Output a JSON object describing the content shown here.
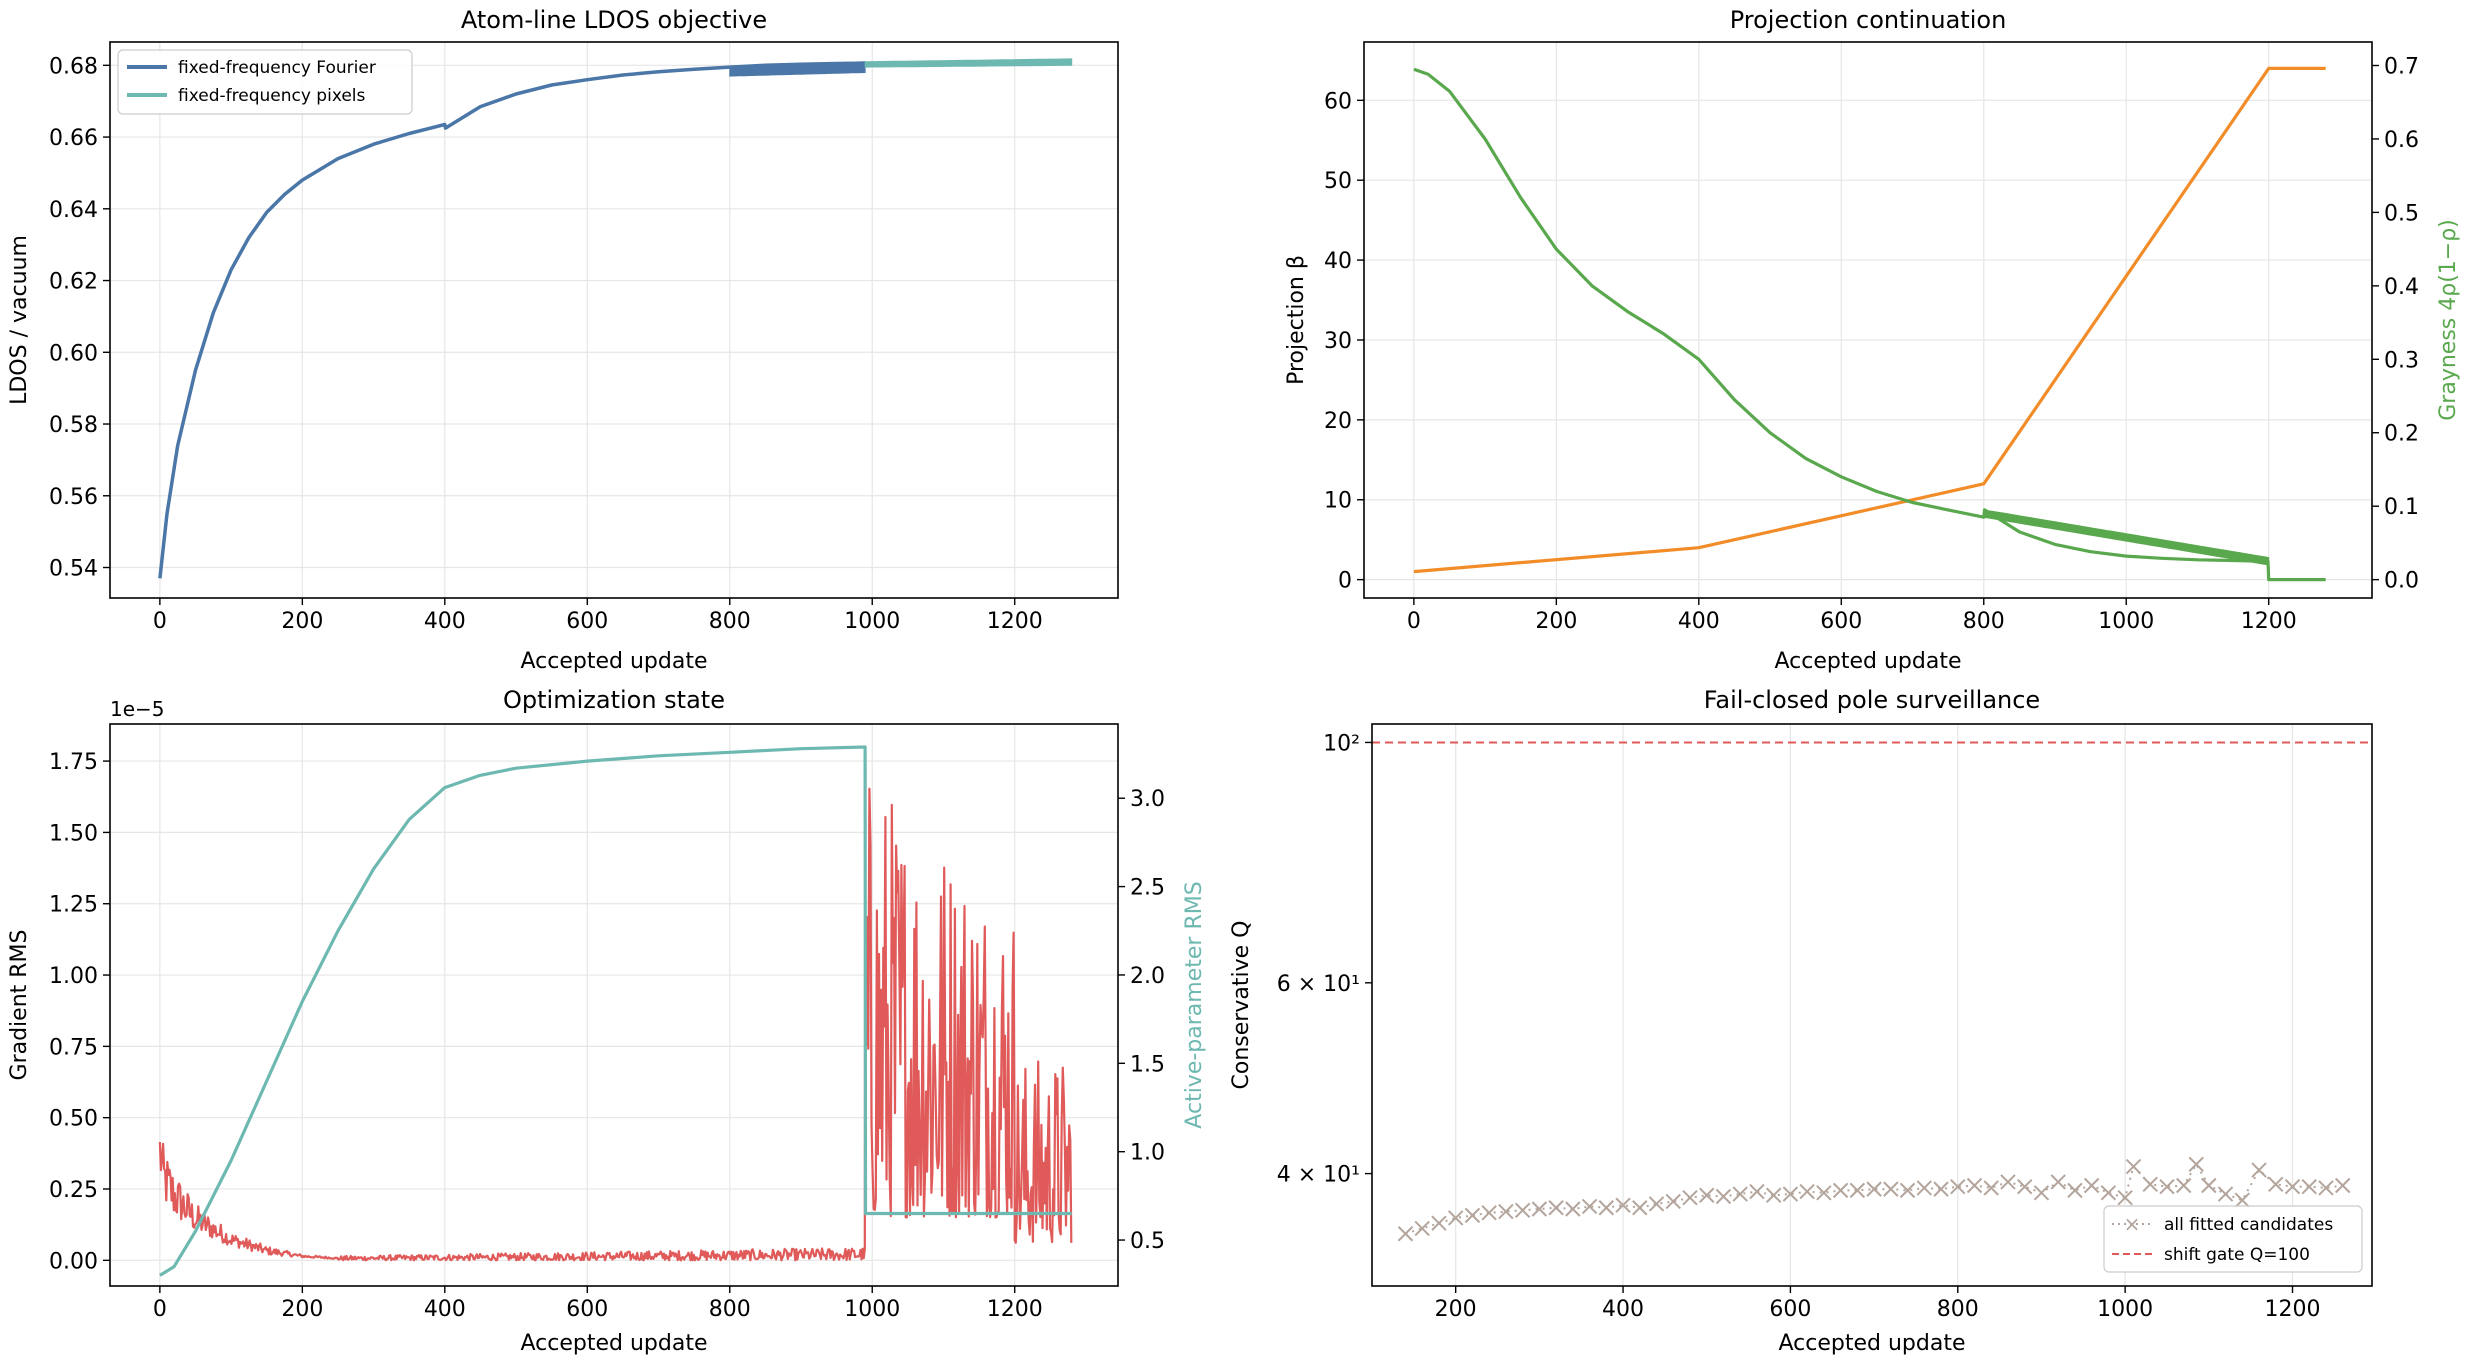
{
  "figure": {
    "colors": {
      "fourier": "#4a76a8",
      "pixels": "#6db8b1",
      "beta": "#f28c28",
      "grayness": "#5aa84e",
      "gradient": "#e05a5a",
      "active_rms": "#6db8b1",
      "candidates": "#b3a59c",
      "gate": "#e05a5a",
      "grid": "#e6e6e6"
    }
  },
  "chart_data": [
    {
      "id": "ldos",
      "type": "line",
      "title": "Atom-line LDOS objective",
      "xlabel": "Accepted update",
      "ylabel": "LDOS / vacuum",
      "xlim": [
        -70,
        1345
      ],
      "ylim": [
        0.5315,
        0.6865
      ],
      "xticks": [
        0,
        200,
        400,
        600,
        800,
        1000,
        1200
      ],
      "yticks": [
        0.54,
        0.56,
        0.58,
        0.6,
        0.62,
        0.64,
        0.66,
        0.68
      ],
      "ytick_labels": [
        "0.54",
        "0.56",
        "0.58",
        "0.60",
        "0.62",
        "0.64",
        "0.66",
        "0.68"
      ],
      "grid": true,
      "legend": "top-left",
      "series": [
        {
          "name": "fixed-frequency Fourier",
          "color_key": "fourier",
          "x": [
            0,
            10,
            25,
            50,
            75,
            100,
            125,
            150,
            175,
            200,
            250,
            300,
            350,
            400,
            401,
            450,
            500,
            550,
            600,
            650,
            700,
            750,
            800,
            850,
            900,
            950,
            990
          ],
          "y": [
            0.537,
            0.555,
            0.574,
            0.595,
            0.611,
            0.623,
            0.632,
            0.639,
            0.644,
            0.648,
            0.654,
            0.658,
            0.661,
            0.6635,
            0.6625,
            0.6685,
            0.672,
            0.6745,
            0.676,
            0.6773,
            0.6782,
            0.6789,
            0.6795,
            0.68,
            0.6803,
            0.6805,
            0.6806
          ],
          "band": {
            "x_start": 800,
            "x_end": 990,
            "lower_start": 0.677,
            "lower_end": 0.678,
            "upper_start": 0.6798,
            "upper_end": 0.681
          }
        },
        {
          "name": "fixed-frequency pixels",
          "color_key": "pixels",
          "x": [
            990,
            1280
          ],
          "y": [
            0.6806,
            0.6812
          ],
          "band": {
            "x_start": 990,
            "x_end": 1280,
            "lower_start": 0.6795,
            "lower_end": 0.68,
            "upper_start": 0.681,
            "upper_end": 0.6818
          }
        }
      ]
    },
    {
      "id": "projection",
      "type": "line",
      "title": "Projection continuation",
      "xlabel": "Accepted update",
      "ylabel": "Projection β",
      "ylabel_right": "Grayness 4ρ(1−ρ)",
      "xlim": [
        -70,
        1345
      ],
      "ylim": [
        -2.3,
        67.3
      ],
      "ylim_right": [
        -0.025,
        0.732
      ],
      "xticks": [
        0,
        200,
        400,
        600,
        800,
        1000,
        1200
      ],
      "yticks": [
        0,
        10,
        20,
        30,
        40,
        50,
        60
      ],
      "ytick_labels": [
        "0",
        "10",
        "20",
        "30",
        "40",
        "50",
        "60"
      ],
      "yticks_right": [
        0.0,
        0.1,
        0.2,
        0.3,
        0.4,
        0.5,
        0.6,
        0.7
      ],
      "ytick_labels_right": [
        "0.0",
        "0.1",
        "0.2",
        "0.3",
        "0.4",
        "0.5",
        "0.6",
        "0.7"
      ],
      "grid": true,
      "series": [
        {
          "axis": "left",
          "color_key": "beta",
          "x": [
            0,
            400,
            800,
            1200,
            1280
          ],
          "y": [
            1,
            4,
            12,
            64,
            64
          ]
        },
        {
          "axis": "right",
          "color_key": "grayness",
          "x": [
            0,
            20,
            50,
            100,
            150,
            200,
            250,
            300,
            350,
            400,
            450,
            500,
            550,
            600,
            650,
            700,
            750,
            800,
            801,
            850,
            900,
            950,
            1000,
            1050,
            1100,
            1150,
            1199,
            1200,
            1280
          ],
          "y": [
            0.695,
            0.688,
            0.665,
            0.6,
            0.52,
            0.45,
            0.4,
            0.365,
            0.335,
            0.3,
            0.245,
            0.2,
            0.165,
            0.14,
            0.12,
            0.105,
            0.095,
            0.085,
            0.095,
            0.065,
            0.048,
            0.038,
            0.032,
            0.029,
            0.027,
            0.026,
            0.025,
            0.0,
            0.0
          ],
          "band": {
            "x_start": 800,
            "x_end": 1200,
            "lower_start": 0.085,
            "lower_end": 0.02,
            "upper_start": 0.095,
            "upper_end": 0.03
          }
        }
      ]
    },
    {
      "id": "optimization",
      "type": "line",
      "title": "Optimization state",
      "xlabel": "Accepted update",
      "ylabel": "Gradient RMS",
      "ylabel_right": "Active-parameter RMS",
      "y_offset_label": "1e−5",
      "xlim": [
        -70,
        1345
      ],
      "ylim": [
        -0.09,
        1.88
      ],
      "ylim_right": [
        0.24,
        3.42
      ],
      "xticks": [
        0,
        200,
        400,
        600,
        800,
        1000,
        1200
      ],
      "yticks": [
        0,
        0.25,
        0.5,
        0.75,
        1.0,
        1.25,
        1.5,
        1.75
      ],
      "ytick_labels": [
        "0.00",
        "0.25",
        "0.50",
        "0.75",
        "1.00",
        "1.25",
        "1.50",
        "1.75"
      ],
      "yticks_right": [
        0.5,
        1.0,
        1.5,
        2.0,
        2.5,
        3.0
      ],
      "ytick_labels_right": [
        "0.5",
        "1.0",
        "1.5",
        "2.0",
        "2.5",
        "3.0"
      ],
      "grid": true,
      "series": [
        {
          "axis": "left",
          "color_key": "gradient",
          "noisy": true,
          "segments": [
            {
              "x_start": 0,
              "x_end": 250,
              "envelope_x": [
                0,
                5,
                20,
                50,
                100,
                150,
                200,
                250
              ],
              "low": [
                0.3,
                0.2,
                0.15,
                0.1,
                0.05,
                0.02,
                0.01,
                0.005
              ],
              "high": [
                0.49,
                0.4,
                0.32,
                0.2,
                0.1,
                0.05,
                0.02,
                0.01
              ]
            },
            {
              "x_start": 250,
              "x_end": 990,
              "envelope_x": [
                250,
                990
              ],
              "low": [
                0.0,
                0.0
              ],
              "high": [
                0.015,
                0.045
              ]
            },
            {
              "x_start": 990,
              "x_end": 1200,
              "envelope_x": [
                990,
                1200
              ],
              "low": [
                0.15,
                0.15
              ],
              "high": [
                1.75,
                1.3
              ]
            },
            {
              "x_start": 1200,
              "x_end": 1280,
              "envelope_x": [
                1200,
                1280
              ],
              "low": [
                0.06,
                0.06
              ],
              "high": [
                0.72,
                0.72
              ]
            }
          ]
        },
        {
          "axis": "right",
          "color_key": "active_rms",
          "x": [
            0,
            20,
            50,
            100,
            150,
            200,
            250,
            300,
            350,
            400,
            450,
            500,
            600,
            700,
            800,
            900,
            990,
            990.5,
            1280
          ],
          "y": [
            0.3,
            0.35,
            0.55,
            0.95,
            1.4,
            1.85,
            2.25,
            2.6,
            2.88,
            3.06,
            3.13,
            3.17,
            3.21,
            3.24,
            3.26,
            3.28,
            3.29,
            0.65,
            0.65
          ]
        }
      ]
    },
    {
      "id": "poles",
      "type": "scatter",
      "title": "Fail-closed pole surveillance",
      "xlabel": "Accepted update",
      "ylabel": "Conservative Q",
      "xlim": [
        100,
        1295
      ],
      "ylim": [
        31.5,
        104
      ],
      "log_y": true,
      "xticks": [
        200,
        400,
        600,
        800,
        1000,
        1200
      ],
      "yticks": [
        40,
        60,
        100
      ],
      "ytick_labels": [
        "4 × 10¹",
        "6 × 10¹",
        "10²"
      ],
      "grid": true,
      "legend": "bottom-right",
      "series": [
        {
          "name": "all fitted candidates",
          "color_key": "candidates",
          "marker": "x",
          "linestyle": "dotted",
          "x": [
            140,
            160,
            180,
            200,
            220,
            240,
            260,
            280,
            300,
            320,
            340,
            360,
            380,
            400,
            420,
            440,
            460,
            480,
            500,
            520,
            540,
            560,
            580,
            600,
            620,
            640,
            660,
            680,
            700,
            720,
            740,
            760,
            780,
            800,
            820,
            840,
            860,
            880,
            900,
            920,
            940,
            960,
            980,
            1000,
            1010,
            1030,
            1050,
            1070,
            1085,
            1100,
            1120,
            1140,
            1160,
            1180,
            1200,
            1220,
            1240,
            1260
          ],
          "y": [
            35.2,
            35.6,
            36.0,
            36.4,
            36.6,
            36.8,
            36.9,
            37.0,
            37.1,
            37.2,
            37.1,
            37.3,
            37.2,
            37.4,
            37.2,
            37.5,
            37.7,
            38.0,
            38.2,
            38.1,
            38.3,
            38.5,
            38.2,
            38.3,
            38.5,
            38.4,
            38.6,
            38.6,
            38.7,
            38.7,
            38.6,
            38.8,
            38.7,
            38.9,
            39.0,
            38.8,
            39.3,
            38.9,
            38.4,
            39.3,
            38.6,
            39.0,
            38.4,
            38.0,
            40.6,
            39.1,
            38.9,
            39.0,
            40.8,
            39.0,
            38.3,
            37.8,
            40.3,
            39.1,
            38.9,
            38.9,
            38.8,
            39.0
          ]
        },
        {
          "name": "shift gate Q=100",
          "color_key": "gate",
          "type": "hline",
          "y": 100
        }
      ]
    }
  ]
}
